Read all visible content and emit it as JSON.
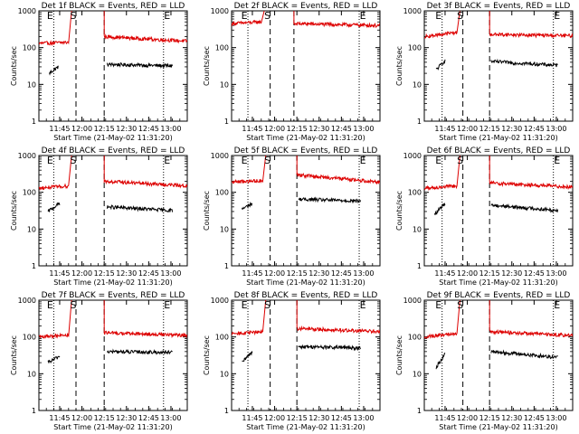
{
  "figure": {
    "xlabel": "Start Time (21-May-02 11:31:20)",
    "ylabel": "Counts/sec",
    "x_ticks": [
      "11:45",
      "12:00",
      "12:15",
      "12:30",
      "12:45",
      "13:00"
    ],
    "y_ticks": [
      "1",
      "10",
      "100",
      "1000"
    ],
    "markers": {
      "eclipse": "E",
      "saa": "S"
    },
    "colors": {
      "events": "#000000",
      "lld": "#dd0000"
    }
  },
  "chart_data": [
    {
      "type": "line",
      "title": "Det 1f BLACK = Events, RED = LLD",
      "xlim": [
        "11:31",
        "13:11"
      ],
      "ylim": [
        1,
        1000
      ],
      "yscale": "log",
      "series": [
        {
          "name": "Events",
          "color": "black",
          "segments": [
            {
              "x": [
                "11:38",
                "11:44"
              ],
              "y": [
                20,
                30
              ]
            },
            {
              "x": [
                "12:17",
                "13:01"
              ],
              "y": [
                35,
                32
              ]
            }
          ]
        },
        {
          "name": "LLD",
          "color": "red",
          "segments": [
            {
              "x": [
                "11:31",
                "11:51"
              ],
              "y": [
                130,
                140
              ]
            },
            {
              "x": [
                "12:15",
                "13:11"
              ],
              "y": [
                200,
                150
              ]
            }
          ]
        }
      ],
      "dotted_lines": [
        "11:41",
        "12:55"
      ],
      "dashed_lines": [
        "11:56",
        "12:15"
      ]
    },
    {
      "type": "line",
      "title": "Det 2f BLACK = Events, RED = LLD",
      "xlim": [
        "11:31",
        "13:11"
      ],
      "ylim": [
        1,
        1000
      ],
      "yscale": "log",
      "series": [
        {
          "name": "Events",
          "color": "black",
          "segments": []
        },
        {
          "name": "LLD",
          "color": "red",
          "segments": [
            {
              "x": [
                "11:31",
                "11:51"
              ],
              "y": [
                450,
                500
              ]
            },
            {
              "x": [
                "12:13",
                "13:11"
              ],
              "y": [
                450,
                400
              ]
            }
          ]
        }
      ],
      "dotted_lines": [
        "11:42",
        "12:57"
      ],
      "dashed_lines": [
        "11:57",
        "12:13"
      ]
    },
    {
      "type": "line",
      "title": "Det 3f BLACK = Events, RED = LLD",
      "xlim": [
        "11:31",
        "13:11"
      ],
      "ylim": [
        1,
        1000
      ],
      "yscale": "log",
      "series": [
        {
          "name": "Events",
          "color": "black",
          "segments": [
            {
              "x": [
                "11:39",
                "11:45"
              ],
              "y": [
                25,
                45
              ]
            },
            {
              "x": [
                "12:16",
                "13:01"
              ],
              "y": [
                42,
                33
              ]
            }
          ]
        },
        {
          "name": "LLD",
          "color": "red",
          "segments": [
            {
              "x": [
                "11:31",
                "11:53"
              ],
              "y": [
                200,
                260
              ]
            },
            {
              "x": [
                "12:15",
                "13:11"
              ],
              "y": [
                230,
                210
              ]
            }
          ]
        }
      ],
      "dotted_lines": [
        "11:43",
        "12:58"
      ],
      "dashed_lines": [
        "11:57",
        "12:15"
      ]
    },
    {
      "type": "line",
      "title": "Det 4f BLACK = Events, RED = LLD",
      "xlim": [
        "11:31",
        "13:11"
      ],
      "ylim": [
        1,
        1000
      ],
      "yscale": "log",
      "series": [
        {
          "name": "Events",
          "color": "black",
          "segments": [
            {
              "x": [
                "11:37",
                "11:45"
              ],
              "y": [
                30,
                50
              ]
            },
            {
              "x": [
                "12:17",
                "13:01"
              ],
              "y": [
                40,
                32
              ]
            }
          ]
        },
        {
          "name": "LLD",
          "color": "red",
          "segments": [
            {
              "x": [
                "11:31",
                "11:51"
              ],
              "y": [
                130,
                150
              ]
            },
            {
              "x": [
                "12:15",
                "13:11"
              ],
              "y": [
                200,
                150
              ]
            }
          ]
        }
      ],
      "dotted_lines": [
        "11:41",
        "12:55"
      ],
      "dashed_lines": [
        "11:56",
        "12:15"
      ]
    },
    {
      "type": "line",
      "title": "Det 5f BLACK = Events, RED = LLD",
      "xlim": [
        "11:31",
        "13:11"
      ],
      "ylim": [
        1,
        1000
      ],
      "yscale": "log",
      "series": [
        {
          "name": "Events",
          "color": "black",
          "segments": [
            {
              "x": [
                "11:38",
                "11:45"
              ],
              "y": [
                35,
                50
              ]
            },
            {
              "x": [
                "12:16",
                "12:58"
              ],
              "y": [
                65,
                58
              ]
            }
          ]
        },
        {
          "name": "LLD",
          "color": "red",
          "segments": [
            {
              "x": [
                "11:31",
                "11:52"
              ],
              "y": [
                190,
                210
              ]
            },
            {
              "x": [
                "12:15",
                "13:11"
              ],
              "y": [
                300,
                190
              ]
            }
          ]
        }
      ],
      "dotted_lines": [
        "11:42",
        "12:57"
      ],
      "dashed_lines": [
        "11:57",
        "12:15"
      ]
    },
    {
      "type": "line",
      "title": "Det 6f BLACK = Events, RED = LLD",
      "xlim": [
        "11:31",
        "13:11"
      ],
      "ylim": [
        1,
        1000
      ],
      "yscale": "log",
      "series": [
        {
          "name": "Events",
          "color": "black",
          "segments": [
            {
              "x": [
                "11:38",
                "11:45"
              ],
              "y": [
                25,
                50
              ]
            },
            {
              "x": [
                "12:16",
                "13:01"
              ],
              "y": [
                45,
                32
              ]
            }
          ]
        },
        {
          "name": "LLD",
          "color": "red",
          "segments": [
            {
              "x": [
                "11:31",
                "11:53"
              ],
              "y": [
                130,
                150
              ]
            },
            {
              "x": [
                "12:15",
                "13:11"
              ],
              "y": [
                180,
                140
              ]
            }
          ]
        }
      ],
      "dotted_lines": [
        "11:43",
        "12:58"
      ],
      "dashed_lines": [
        "11:57",
        "12:15"
      ]
    },
    {
      "type": "line",
      "title": "Det 7f BLACK = Events, RED = LLD",
      "xlim": [
        "11:31",
        "13:11"
      ],
      "ylim": [
        1,
        1000
      ],
      "yscale": "log",
      "series": [
        {
          "name": "Events",
          "color": "black",
          "segments": [
            {
              "x": [
                "11:37",
                "11:45"
              ],
              "y": [
                20,
                30
              ]
            },
            {
              "x": [
                "12:17",
                "13:01"
              ],
              "y": [
                40,
                38
              ]
            }
          ]
        },
        {
          "name": "LLD",
          "color": "red",
          "segments": [
            {
              "x": [
                "11:31",
                "11:51"
              ],
              "y": [
                100,
                115
              ]
            },
            {
              "x": [
                "12:15",
                "13:11"
              ],
              "y": [
                130,
                110
              ]
            }
          ]
        }
      ],
      "dotted_lines": [
        "11:41",
        "12:55"
      ],
      "dashed_lines": [
        "11:56",
        "12:15"
      ]
    },
    {
      "type": "line",
      "title": "Det 8f BLACK = Events, RED = LLD",
      "xlim": [
        "11:31",
        "13:11"
      ],
      "ylim": [
        1,
        1000
      ],
      "yscale": "log",
      "series": [
        {
          "name": "Events",
          "color": "black",
          "segments": [
            {
              "x": [
                "11:38",
                "11:45"
              ],
              "y": [
                20,
                40
              ]
            },
            {
              "x": [
                "12:16",
                "12:58"
              ],
              "y": [
                55,
                50
              ]
            }
          ]
        },
        {
          "name": "LLD",
          "color": "red",
          "segments": [
            {
              "x": [
                "11:31",
                "11:52"
              ],
              "y": [
                120,
                140
              ]
            },
            {
              "x": [
                "12:15",
                "13:11"
              ],
              "y": [
                170,
                140
              ]
            }
          ]
        }
      ],
      "dotted_lines": [
        "11:42",
        "12:57"
      ],
      "dashed_lines": [
        "11:57",
        "12:15"
      ]
    },
    {
      "type": "line",
      "title": "Det 9f BLACK = Events, RED = LLD",
      "xlim": [
        "11:31",
        "13:11"
      ],
      "ylim": [
        1,
        1000
      ],
      "yscale": "log",
      "series": [
        {
          "name": "Events",
          "color": "black",
          "segments": [
            {
              "x": [
                "11:39",
                "11:45"
              ],
              "y": [
                15,
                35
              ]
            },
            {
              "x": [
                "12:16",
                "13:01"
              ],
              "y": [
                40,
                28
              ]
            }
          ]
        },
        {
          "name": "LLD",
          "color": "red",
          "segments": [
            {
              "x": [
                "11:31",
                "11:53"
              ],
              "y": [
                100,
                130
              ]
            },
            {
              "x": [
                "12:15",
                "13:11"
              ],
              "y": [
                140,
                110
              ]
            }
          ]
        }
      ],
      "dotted_lines": [
        "11:43",
        "12:58"
      ],
      "dashed_lines": [
        "11:57",
        "12:15"
      ]
    }
  ]
}
